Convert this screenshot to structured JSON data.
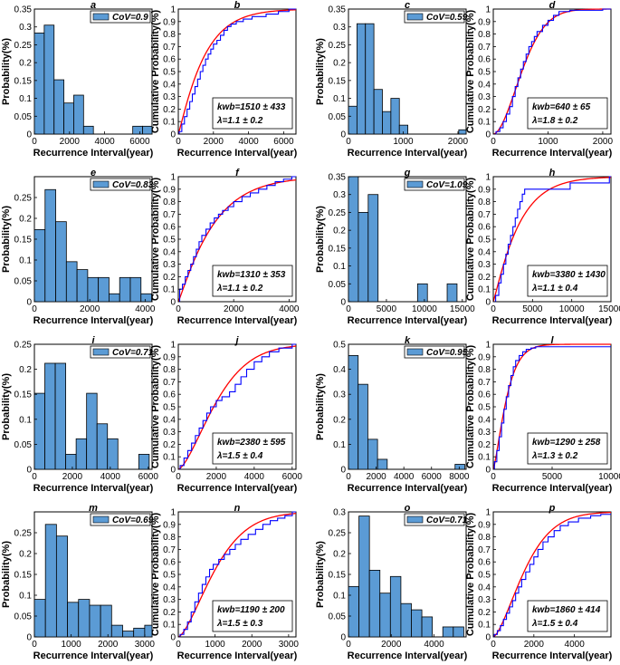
{
  "colors": {
    "bar": "#5b9bd5",
    "bar_edge": "#000000",
    "ecdf": "#0000ff",
    "fit": "#ff0000"
  },
  "axis_text": {
    "x": "Recurrence Interval(year)",
    "y_hist": "Probability(%)",
    "y_cdf": "Cumulative Probability(%)"
  },
  "chart_data": [
    {
      "panel": "a",
      "type": "bar",
      "xlabel": "Recurrence Interval(year)",
      "ylabel": "Probability(%)",
      "xlim": [
        0,
        6700
      ],
      "ylim": [
        0,
        0.35
      ],
      "xticks": [
        0,
        2000,
        4000,
        6000
      ],
      "yticks": [
        0,
        0.05,
        0.1,
        0.15,
        0.2,
        0.25,
        0.3,
        0.35
      ],
      "bin_width": 560,
      "bins": [
        0,
        560,
        1120,
        1680,
        2240,
        2800,
        3360,
        3920,
        4480,
        5040,
        5600,
        6160
      ],
      "values": [
        0.283,
        0.305,
        0.152,
        0.087,
        0.109,
        0.022,
        0,
        0,
        0,
        0,
        0.022,
        0.022
      ],
      "legend": "CoV=0.9"
    },
    {
      "panel": "b",
      "type": "line",
      "xlabel": "Recurrence Interval(year)",
      "ylabel": "Cumulative Probability(%)",
      "xlim": [
        0,
        6700
      ],
      "ylim": [
        0,
        1
      ],
      "xticks": [
        0,
        2000,
        4000,
        6000
      ],
      "yticks": [
        0,
        0.1,
        0.2,
        0.3,
        0.4,
        0.5,
        0.6,
        0.7,
        0.8,
        0.9,
        1
      ],
      "series": [
        {
          "name": "empirical",
          "x": [
            50,
            200,
            350,
            500,
            650,
            800,
            950,
            1100,
            1250,
            1400,
            1550,
            1700,
            1850,
            2000,
            2200,
            2400,
            2600,
            2800,
            3000,
            3300,
            3700,
            4200,
            5000,
            5700,
            6300
          ],
          "y": [
            0.02,
            0.08,
            0.14,
            0.2,
            0.26,
            0.32,
            0.38,
            0.44,
            0.5,
            0.55,
            0.6,
            0.64,
            0.68,
            0.72,
            0.75,
            0.79,
            0.83,
            0.86,
            0.88,
            0.9,
            0.92,
            0.94,
            0.96,
            0.98,
            1.0
          ]
        }
      ],
      "fit": {
        "type": "weibull",
        "k": 1510,
        "lambda": 1.1
      },
      "annotation": [
        "kwb=1510 ± 433",
        "λ=1.1 ± 0.2"
      ]
    },
    {
      "panel": "c",
      "type": "bar",
      "xlabel": "Recurrence Interval(year)",
      "ylabel": "Probability(%)",
      "xlim": [
        0,
        2150
      ],
      "ylim": [
        0,
        0.35
      ],
      "xticks": [
        0,
        1000,
        2000
      ],
      "yticks": [
        0,
        0.05,
        0.1,
        0.15,
        0.2,
        0.25,
        0.3,
        0.35
      ],
      "bin_width": 155,
      "bins": [
        0,
        155,
        310,
        465,
        620,
        775,
        930,
        1085,
        1240,
        1395,
        1550,
        1705,
        1860,
        2015
      ],
      "values": [
        0.078,
        0.309,
        0.309,
        0.125,
        0.063,
        0.1,
        0.025,
        0,
        0,
        0,
        0,
        0,
        0,
        0.012
      ],
      "legend": "CoV=0.59"
    },
    {
      "panel": "d",
      "type": "line",
      "xlabel": "Recurrence Interval(year)",
      "ylabel": "Cumulative Probability(%)",
      "xlim": [
        0,
        2150
      ],
      "ylim": [
        0,
        1
      ],
      "xticks": [
        0,
        1000,
        2000
      ],
      "yticks": [
        0,
        0.1,
        0.2,
        0.3,
        0.4,
        0.5,
        0.6,
        0.7,
        0.8,
        0.9,
        1
      ],
      "series": [
        {
          "name": "empirical",
          "x": [
            50,
            120,
            180,
            240,
            300,
            350,
            400,
            450,
            500,
            550,
            600,
            650,
            700,
            750,
            800,
            900,
            1000,
            1100,
            1200,
            1400,
            2000
          ],
          "y": [
            0.02,
            0.05,
            0.1,
            0.16,
            0.22,
            0.3,
            0.38,
            0.45,
            0.52,
            0.58,
            0.64,
            0.7,
            0.74,
            0.78,
            0.82,
            0.87,
            0.91,
            0.95,
            0.98,
            0.99,
            1.0
          ]
        }
      ],
      "fit": {
        "type": "weibull",
        "k": 640,
        "lambda": 1.8
      },
      "annotation": [
        "kwb=640 ± 65",
        "λ=1.8 ± 0.2"
      ]
    },
    {
      "panel": "e",
      "type": "bar",
      "xlabel": "Recurrence Interval(year)",
      "ylabel": "Probability(%)",
      "xlim": [
        0,
        4250
      ],
      "ylim": [
        0,
        0.3
      ],
      "xticks": [
        0,
        2000,
        4000
      ],
      "yticks": [
        0,
        0.05,
        0.1,
        0.15,
        0.2,
        0.25
      ],
      "bin_width": 385,
      "bins": [
        0,
        385,
        770,
        1155,
        1540,
        1925,
        2310,
        2695,
        3080,
        3465,
        3850
      ],
      "values": [
        0.173,
        0.269,
        0.192,
        0.096,
        0.077,
        0.058,
        0.058,
        0.019,
        0.058,
        0.058,
        0.019
      ],
      "legend": "CoV=0.83"
    },
    {
      "panel": "f",
      "type": "line",
      "xlabel": "Recurrence Interval(year)",
      "ylabel": "Cumulative Probability(%)",
      "xlim": [
        0,
        4250
      ],
      "ylim": [
        0,
        1
      ],
      "xticks": [
        0,
        2000,
        4000
      ],
      "yticks": [
        0,
        0.1,
        0.2,
        0.3,
        0.4,
        0.5,
        0.6,
        0.7,
        0.8,
        0.9,
        1
      ],
      "series": [
        {
          "name": "empirical",
          "x": [
            50,
            150,
            250,
            350,
            450,
            550,
            650,
            750,
            850,
            1000,
            1150,
            1300,
            1450,
            1600,
            1800,
            2000,
            2300,
            2600,
            2900,
            3200,
            3500,
            3800,
            4100
          ],
          "y": [
            0.1,
            0.14,
            0.2,
            0.25,
            0.3,
            0.36,
            0.42,
            0.48,
            0.53,
            0.58,
            0.63,
            0.67,
            0.7,
            0.73,
            0.76,
            0.8,
            0.84,
            0.87,
            0.9,
            0.93,
            0.96,
            0.98,
            1.0
          ]
        }
      ],
      "fit": {
        "type": "weibull",
        "k": 1310,
        "lambda": 1.1
      },
      "annotation": [
        "kwb=1310 ± 353",
        "λ=1.1 ± 0.2"
      ]
    },
    {
      "panel": "g",
      "type": "bar",
      "xlabel": "Recurrence Interval(year)",
      "ylabel": "Probability(%)",
      "xlim": [
        0,
        15500
      ],
      "ylim": [
        0,
        0.35
      ],
      "xticks": [
        0,
        5000,
        10000,
        15000
      ],
      "yticks": [
        0,
        0.05,
        0.1,
        0.15,
        0.2,
        0.25,
        0.3,
        0.35
      ],
      "bin_width": 1300,
      "bins": [
        0,
        1300,
        2600,
        3900,
        5200,
        6500,
        7800,
        9100,
        10400,
        11700,
        13000,
        14300
      ],
      "values": [
        0.35,
        0.25,
        0.3,
        0,
        0,
        0,
        0,
        0.05,
        0,
        0,
        0.05,
        0
      ],
      "legend": "CoV=1.09"
    },
    {
      "panel": "h",
      "type": "line",
      "xlabel": "Recurrence Interval(year)",
      "ylabel": "Cumulative Probability(%)",
      "xlim": [
        0,
        15000
      ],
      "ylim": [
        0,
        1
      ],
      "xticks": [
        0,
        5000,
        10000,
        15000
      ],
      "yticks": [
        0,
        0.1,
        0.2,
        0.3,
        0.4,
        0.5,
        0.6,
        0.7,
        0.8,
        0.9,
        1
      ],
      "series": [
        {
          "name": "empirical",
          "x": [
            300,
            700,
            1000,
            1300,
            1600,
            1900,
            2200,
            2500,
            2800,
            3100,
            3400,
            3700,
            4000,
            9800,
            14800
          ],
          "y": [
            0.05,
            0.15,
            0.22,
            0.3,
            0.38,
            0.46,
            0.53,
            0.6,
            0.67,
            0.74,
            0.8,
            0.86,
            0.9,
            0.95,
            1.0
          ]
        }
      ],
      "fit": {
        "type": "weibull",
        "k": 3380,
        "lambda": 1.1
      },
      "annotation": [
        "kwb=3380 ± 1430",
        "λ=1.1 ± 0.4"
      ]
    },
    {
      "panel": "i",
      "type": "bar",
      "xlabel": "Recurrence Interval(year)",
      "ylabel": "Probability(%)",
      "xlim": [
        0,
        6200
      ],
      "ylim": [
        0,
        0.25
      ],
      "xticks": [
        0,
        2000,
        4000,
        6000
      ],
      "yticks": [
        0,
        0.05,
        0.1,
        0.15,
        0.2,
        0.25
      ],
      "bin_width": 550,
      "bins": [
        0,
        550,
        1100,
        1650,
        2200,
        2750,
        3300,
        3850,
        4400,
        4950,
        5500
      ],
      "values": [
        0.152,
        0.212,
        0.212,
        0.03,
        0.061,
        0.152,
        0.091,
        0.061,
        0,
        0,
        0.03
      ],
      "legend": "CoV=0.71"
    },
    {
      "panel": "j",
      "type": "line",
      "xlabel": "Recurrence Interval(year)",
      "ylabel": "Cumulative Probability(%)",
      "xlim": [
        0,
        6200
      ],
      "ylim": [
        0,
        1
      ],
      "xticks": [
        0,
        2000,
        4000,
        6000
      ],
      "yticks": [
        0,
        0.1,
        0.2,
        0.3,
        0.4,
        0.5,
        0.6,
        0.7,
        0.8,
        0.9,
        1
      ],
      "series": [
        {
          "name": "empirical",
          "x": [
            100,
            300,
            500,
            700,
            900,
            1100,
            1300,
            1500,
            1700,
            2000,
            2300,
            2700,
            3000,
            3300,
            3600,
            4000,
            4400,
            4800,
            5300,
            6000
          ],
          "y": [
            0.03,
            0.09,
            0.15,
            0.21,
            0.27,
            0.33,
            0.39,
            0.45,
            0.5,
            0.55,
            0.58,
            0.62,
            0.68,
            0.74,
            0.8,
            0.86,
            0.9,
            0.94,
            0.97,
            1.0
          ]
        }
      ],
      "fit": {
        "type": "weibull",
        "k": 2380,
        "lambda": 1.5
      },
      "annotation": [
        "kwb=2380 ± 595",
        "λ=1.5 ± 0.4"
      ]
    },
    {
      "panel": "k",
      "type": "bar",
      "xlabel": "Recurrence Interval(year)",
      "ylabel": "Probability(%)",
      "xlim": [
        0,
        8500
      ],
      "ylim": [
        0,
        0.5
      ],
      "xticks": [
        0,
        2000,
        4000,
        6000,
        8000
      ],
      "yticks": [
        0,
        0.1,
        0.2,
        0.3,
        0.4,
        0.5
      ],
      "bin_width": 700,
      "bins": [
        0,
        700,
        1400,
        2100,
        2800,
        3500,
        4200,
        4900,
        5600,
        6300,
        7000,
        7700
      ],
      "values": [
        0.455,
        0.34,
        0.12,
        0.04,
        0,
        0,
        0,
        0,
        0,
        0,
        0,
        0.02
      ],
      "legend": "CoV=0.95"
    },
    {
      "panel": "l",
      "type": "line",
      "xlabel": "Recurrence Interval(year)",
      "ylabel": "Cumulative Probability(%)",
      "xlim": [
        0,
        10000
      ],
      "ylim": [
        0,
        1
      ],
      "xticks": [
        0,
        5000,
        10000
      ],
      "yticks": [
        0,
        0.1,
        0.2,
        0.3,
        0.4,
        0.5,
        0.6,
        0.7,
        0.8,
        0.9,
        1
      ],
      "series": [
        {
          "name": "empirical",
          "x": [
            100,
            300,
            500,
            700,
            900,
            1100,
            1300,
            1500,
            1700,
            1900,
            2200,
            2500,
            2800,
            3200,
            3600,
            8000
          ],
          "y": [
            0.06,
            0.15,
            0.26,
            0.37,
            0.48,
            0.58,
            0.67,
            0.75,
            0.82,
            0.87,
            0.91,
            0.94,
            0.96,
            0.97,
            0.98,
            0.98
          ]
        }
      ],
      "fit": {
        "type": "weibull",
        "k": 1290,
        "lambda": 1.3
      },
      "annotation": [
        "kwb=1290 ± 258",
        "λ=1.3 ± 0.2"
      ]
    },
    {
      "panel": "m",
      "type": "bar",
      "xlabel": "Recurrence Interval(year)",
      "ylabel": "Probability(%)",
      "xlim": [
        0,
        3200
      ],
      "ylim": [
        0,
        0.3
      ],
      "xticks": [
        0,
        1000,
        2000,
        3000
      ],
      "yticks": [
        0,
        0.05,
        0.1,
        0.15,
        0.2,
        0.25
      ],
      "bin_width": 300,
      "bins": [
        0,
        300,
        600,
        900,
        1200,
        1500,
        1800,
        2100,
        2400,
        2700,
        3000
      ],
      "values": [
        0.09,
        0.27,
        0.242,
        0.083,
        0.09,
        0.076,
        0.076,
        0.028,
        0.014,
        0.021,
        0.028
      ],
      "legend": "CoV=0.69"
    },
    {
      "panel": "n",
      "type": "line",
      "xlabel": "Recurrence Interval(year)",
      "ylabel": "Cumulative Probability(%)",
      "xlim": [
        0,
        3200
      ],
      "ylim": [
        0,
        1
      ],
      "xticks": [
        0,
        1000,
        2000,
        3000
      ],
      "yticks": [
        0,
        0.1,
        0.2,
        0.3,
        0.4,
        0.5,
        0.6,
        0.7,
        0.8,
        0.9,
        1
      ],
      "series": [
        {
          "name": "empirical",
          "x": [
            50,
            150,
            250,
            350,
            450,
            550,
            650,
            750,
            850,
            950,
            1100,
            1250,
            1400,
            1550,
            1700,
            1900,
            2100,
            2300,
            2500,
            2700,
            2900,
            3100
          ],
          "y": [
            0.02,
            0.06,
            0.12,
            0.2,
            0.28,
            0.35,
            0.42,
            0.48,
            0.54,
            0.58,
            0.62,
            0.66,
            0.7,
            0.74,
            0.78,
            0.82,
            0.86,
            0.9,
            0.93,
            0.95,
            0.97,
            1.0
          ]
        }
      ],
      "fit": {
        "type": "weibull",
        "k": 1190,
        "lambda": 1.5
      },
      "annotation": [
        "kwb=1190 ± 200",
        "λ=1.5 ± 0.3"
      ]
    },
    {
      "panel": "o",
      "type": "bar",
      "xlabel": "Recurrence Interval(year)",
      "ylabel": "Probability(%)",
      "xlim": [
        0,
        5500
      ],
      "ylim": [
        0,
        0.3
      ],
      "xticks": [
        0,
        2000,
        4000
      ],
      "yticks": [
        0,
        0.05,
        0.1,
        0.15,
        0.2,
        0.25,
        0.3
      ],
      "bin_width": 490,
      "bins": [
        0,
        490,
        980,
        1470,
        1960,
        2450,
        2940,
        3430,
        3920,
        4410,
        4900
      ],
      "values": [
        0.121,
        0.29,
        0.16,
        0.105,
        0.145,
        0.08,
        0.065,
        0.048,
        0,
        0.024,
        0.024
      ],
      "legend": "CoV=0.71"
    },
    {
      "panel": "p",
      "type": "line",
      "xlabel": "Recurrence Interval(year)",
      "ylabel": "Cumulative Probability(%)",
      "xlim": [
        0,
        5800
      ],
      "ylim": [
        0,
        1
      ],
      "xticks": [
        0,
        2000,
        4000
      ],
      "yticks": [
        0,
        0.1,
        0.2,
        0.3,
        0.4,
        0.5,
        0.6,
        0.7,
        0.8,
        0.9,
        1
      ],
      "series": [
        {
          "name": "empirical",
          "x": [
            50,
            200,
            350,
            500,
            650,
            800,
            950,
            1100,
            1250,
            1400,
            1600,
            1800,
            2000,
            2200,
            2450,
            2700,
            3000,
            3300,
            3700,
            4200,
            4800,
            5300
          ],
          "y": [
            0.02,
            0.05,
            0.09,
            0.14,
            0.19,
            0.24,
            0.29,
            0.35,
            0.4,
            0.46,
            0.52,
            0.58,
            0.64,
            0.7,
            0.76,
            0.8,
            0.85,
            0.89,
            0.92,
            0.95,
            0.97,
            0.98
          ]
        }
      ],
      "fit": {
        "type": "weibull",
        "k": 1860,
        "lambda": 1.5
      },
      "annotation": [
        "kwb=1860 ± 414",
        "λ=1.5 ± 0.4"
      ]
    }
  ]
}
